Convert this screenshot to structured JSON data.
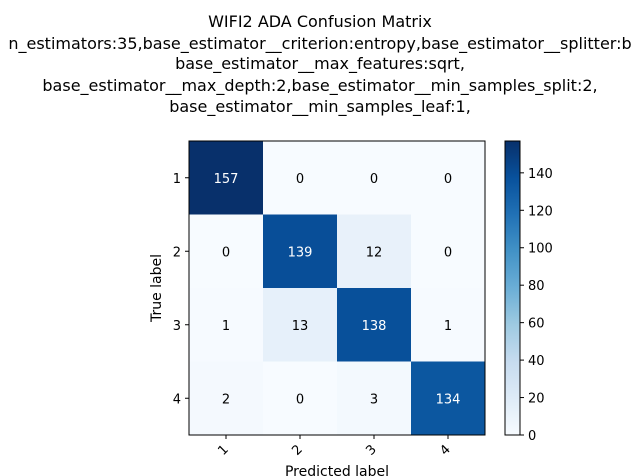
{
  "chart_data": {
    "type": "heatmap",
    "title_lines": [
      "WIFI2 ADA Confusion Matrix",
      "n_estimators:35,base_estimator__criterion:entropy,base_estimator__splitter:b",
      "base_estimator__max_features:sqrt,",
      "base_estimator__max_depth:2,base_estimator__min_samples_split:2,",
      "base_estimator__min_samples_leaf:1,"
    ],
    "xlabel": "Predicted label",
    "ylabel": "True label",
    "x_categories": [
      "1",
      "2",
      "3",
      "4"
    ],
    "y_categories": [
      "1",
      "2",
      "3",
      "4"
    ],
    "matrix": [
      [
        157,
        0,
        0,
        0
      ],
      [
        0,
        139,
        12,
        0
      ],
      [
        1,
        13,
        138,
        1
      ],
      [
        2,
        0,
        3,
        134
      ]
    ],
    "colormap": "Blues",
    "color_range": [
      0,
      157
    ],
    "colorbar_ticks": [
      "0",
      "20",
      "40",
      "60",
      "80",
      "100",
      "120",
      "140"
    ],
    "grid": false
  }
}
